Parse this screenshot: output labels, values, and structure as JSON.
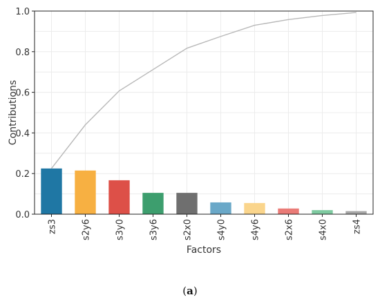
{
  "caption": {
    "open": "(",
    "letter": "a",
    "close": ")"
  },
  "chart_data": {
    "type": "bar",
    "title": "",
    "xlabel": "Factors",
    "ylabel": "Contributions",
    "ylim": [
      0,
      1.0
    ],
    "yticks": [
      "0.0",
      "0.2",
      "0.4",
      "0.6",
      "0.8",
      "1.0"
    ],
    "grid": true,
    "categories": [
      "zs3",
      "s2y6",
      "s3y0",
      "s3y6",
      "s2x0",
      "s4y0",
      "s4y6",
      "s2x6",
      "s4x0",
      "zs4"
    ],
    "values": [
      0.225,
      0.215,
      0.167,
      0.105,
      0.105,
      0.058,
      0.055,
      0.028,
      0.02,
      0.015
    ],
    "bar_colors": [
      "#1f77a4",
      "#f7b042",
      "#dd5048",
      "#3d9e6e",
      "#6f6f6f",
      "#6aa8c8",
      "#fad58c",
      "#ea7b77",
      "#7ecaa0",
      "#a6a6a6"
    ],
    "cumulative_line": {
      "values": [
        0.225,
        0.44,
        0.607,
        0.712,
        0.817,
        0.875,
        0.93,
        0.958,
        0.978,
        0.993
      ],
      "color": "#b8b8b8"
    }
  }
}
